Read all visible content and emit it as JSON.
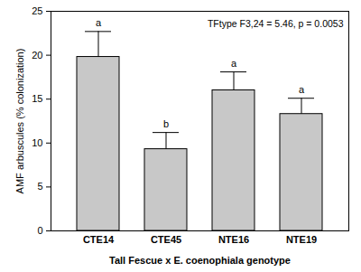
{
  "chart_data": {
    "type": "bar",
    "annotation": "TFtype F3,24 = 5.46, p = 0.0053",
    "x_label": "Tall Fescue x E. coenophiala genotype",
    "y_label": "AMF arbuscules (% colonization)",
    "categories": [
      "CTE14",
      "CTE45",
      "NTE16",
      "NTE19"
    ],
    "values": [
      19.8,
      9.3,
      16.0,
      13.3
    ],
    "errors": [
      2.9,
      1.9,
      2.1,
      1.8
    ],
    "letters": [
      "a",
      "b",
      "a",
      "a"
    ],
    "color": "#c8c8c8",
    "ylim": [
      0,
      25
    ],
    "yticks": [
      0,
      5,
      10,
      15,
      20,
      25
    ],
    "grid": false
  }
}
